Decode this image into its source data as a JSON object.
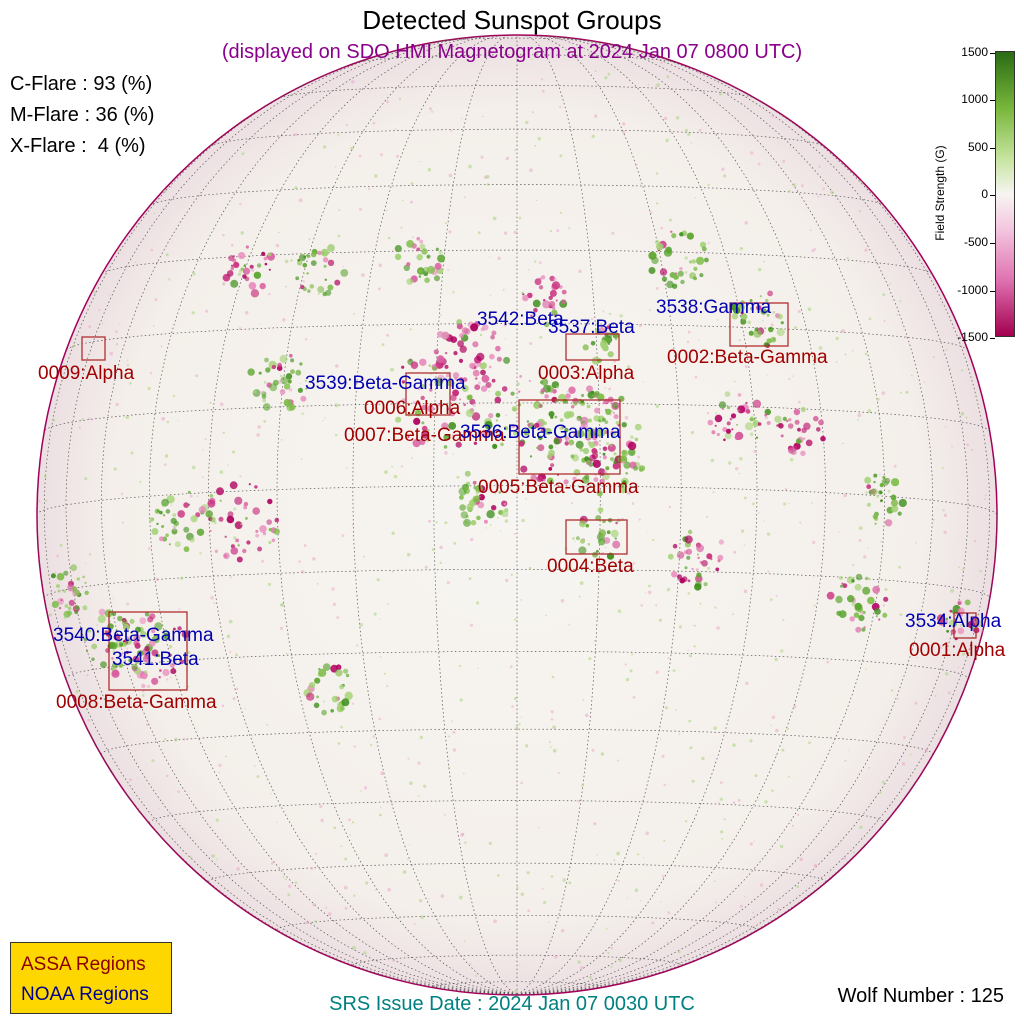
{
  "header": {
    "title": "Detected Sunspot Groups",
    "subtitle": "(displayed on SDO HMI Magnetogram at 2024 Jan 07 0800 UTC)"
  },
  "flare_probabilities": [
    {
      "label": "C-Flare : 93 (%)"
    },
    {
      "label": "M-Flare : 36 (%)"
    },
    {
      "label": "X-Flare :  4 (%)"
    }
  ],
  "colorbar": {
    "title": "Field Strength (G)",
    "ticks": [
      "1500",
      "1000",
      "500",
      "0",
      "-500",
      "-1000",
      "-1500"
    ],
    "colors": {
      "positive": "#3d8f1c",
      "negative": "#b0005f",
      "neutral": "#f6f5f2"
    }
  },
  "assa_regions": [
    {
      "label": "0009:Alpha"
    },
    {
      "label": "0002:Beta-Gamma"
    },
    {
      "label": "0003:Alpha"
    },
    {
      "label": "0006:Alpha"
    },
    {
      "label": "0007:Beta-Gamma"
    },
    {
      "label": "0005:Beta-Gamma"
    },
    {
      "label": "0004:Beta"
    },
    {
      "label": "0008:Beta-Gamma"
    },
    {
      "label": "0001:Alpha"
    }
  ],
  "noaa_regions": [
    {
      "label": "3542:Beta"
    },
    {
      "label": "3537:Beta"
    },
    {
      "label": "3538:Gamma"
    },
    {
      "label": "3539:Beta-Gamma"
    },
    {
      "label": "3536:Beta-Gamma"
    },
    {
      "label": "3540:Beta-Gamma"
    },
    {
      "label": "3541:Beta"
    },
    {
      "label": "3534:Alpha"
    }
  ],
  "legend": {
    "assa": "ASSA Regions",
    "noaa": "NOAA Regions"
  },
  "footer": {
    "srs_issue": "SRS Issue Date : 2024 Jan 07 0030 UTC"
  },
  "wolf_number": "Wolf Number : 125",
  "colors": {
    "assa": "#a00000",
    "noaa": "#0000b0",
    "subtitle": "#8b008b",
    "footer": "#008080",
    "legend_bg": "#ffd700"
  }
}
